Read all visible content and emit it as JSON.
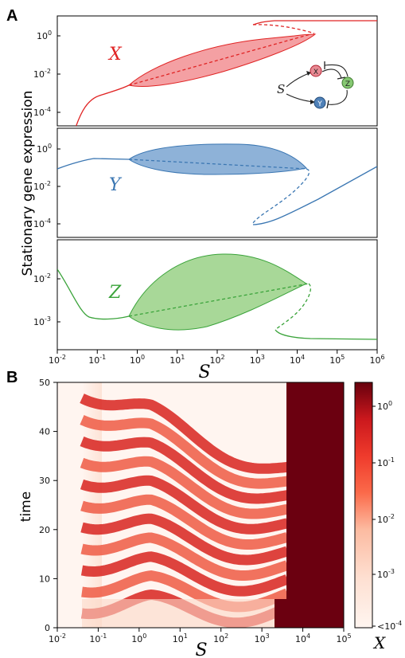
{
  "panels": {
    "a_letter": "A",
    "b_letter": "B"
  },
  "panel_a": {
    "ylabel": "Stationary gene expression",
    "xlabel": "S",
    "x_ticks": [
      "10^-2",
      "10^-1",
      "10^0",
      "10^1",
      "10^2",
      "10^3",
      "10^4",
      "10^5",
      "10^6"
    ],
    "inset": {
      "input": "S",
      "nodes": [
        {
          "id": "X",
          "color": "#e88a93"
        },
        {
          "id": "Y",
          "color": "#4f81b8"
        },
        {
          "id": "Z",
          "color": "#86c872"
        }
      ]
    },
    "colors": {
      "X": "#e02424",
      "Y": "#3a76b2",
      "Z": "#3aa33a",
      "fillX": "#f08080",
      "fillY": "#7fa6d2",
      "fillZ": "#9fd48f"
    }
  },
  "panel_b": {
    "ylabel": "time",
    "xlabel": "S",
    "y_ticks": [
      "0",
      "10",
      "20",
      "30",
      "40",
      "50"
    ],
    "x_ticks": [
      "10^-2",
      "10^-1",
      "10^0",
      "10^1",
      "10^2",
      "10^3",
      "10^4",
      "10^5"
    ],
    "colorbar_ticks": [
      "10^0",
      "10^-1",
      "10^-2",
      "10^-3",
      "<10^-4"
    ],
    "colorbar_label": "X"
  },
  "chart_data": [
    {
      "type": "line",
      "title": "",
      "xlabel": "S",
      "ylabel": "Stationary gene expression",
      "xscale": "log",
      "yscale": "log",
      "xlim": [
        0.01,
        1000000
      ],
      "series": [
        {
          "name": "X",
          "x": [
            0.07,
            0.15,
            0.3,
            0.6,
            2,
            10,
            100,
            1000,
            10000,
            20000,
            100000,
            1000000
          ],
          "values": [
            2e-05,
            0.0001,
            0.0006,
            0.003,
            0.006,
            0.02,
            0.1,
            0.4,
            1.0,
            1.6,
            5,
            5
          ],
          "hopf_range": [
            0.6,
            20000
          ],
          "osc_max": [
            0.004,
            0.03,
            0.2,
            0.5,
            0.8
          ],
          "osc_min": [
            0.003,
            0.003,
            0.005,
            0.2,
            0.8
          ],
          "unstable": [
            0.6,
            20000
          ],
          "upper_branch_from": 400
        }
      ],
      "ylim": [
        1e-05,
        5
      ],
      "ylabel_note": "X",
      "y_ticks": [
        "10^-4",
        "10^-2",
        "10^0"
      ]
    },
    {
      "type": "line",
      "xscale": "log",
      "yscale": "log",
      "xlim": [
        0.01,
        1000000
      ],
      "series": [
        {
          "name": "Y",
          "x": [
            0.01,
            0.1,
            0.6,
            10,
            100,
            1000,
            10000,
            20000,
            100000,
            1000000
          ],
          "values": [
            0.05,
            0.15,
            0.2,
            0.2,
            0.15,
            0.1,
            0.08,
            0.07,
            0.003,
            0.1
          ],
          "hopf_range": [
            0.6,
            20000
          ],
          "upper_branch_until": 20000,
          "lower_branch_from": 800
        }
      ],
      "ylim": [
        5e-05,
        5
      ],
      "y_ticks": [
        "10^-4",
        "10^-2",
        "10^0"
      ]
    },
    {
      "type": "line",
      "xscale": "log",
      "yscale": "log",
      "xlim": [
        0.01,
        1000000
      ],
      "series": [
        {
          "name": "Z",
          "x": [
            0.01,
            0.05,
            0.2,
            0.6,
            10,
            100,
            1000,
            10000,
            20000,
            100000,
            1000000
          ],
          "values": [
            0.02,
            0.002,
            0.001,
            0.0012,
            0.003,
            0.005,
            0.007,
            0.009,
            0.009,
            0.0004,
            0.00035
          ],
          "hopf_range": [
            0.6,
            20000
          ]
        }
      ],
      "ylim": [
        0.0002,
        0.05
      ],
      "y_ticks": [
        "10^-3",
        "10^-2"
      ]
    },
    {
      "type": "heatmap",
      "xlabel": "S",
      "ylabel": "time",
      "xscale": "log",
      "xlim": [
        0.01,
        100000
      ],
      "ylim": [
        0,
        50
      ],
      "colorbar": {
        "label": "X",
        "scale": "log",
        "min": 0.0001,
        "max": 2,
        "ticks": [
          "<10^-4",
          "10^-3",
          "10^-2",
          "10^-1",
          "10^0"
        ]
      },
      "regions": [
        {
          "S_range": [
            0.01,
            0.03
          ],
          "X": "<10^-4"
        },
        {
          "S_range": [
            0.05,
            3500
          ],
          "pattern": "oscillations",
          "period_min_at_S": 5
        },
        {
          "S_range": [
            3500,
            100000
          ],
          "X": "≈2"
        }
      ]
    }
  ]
}
